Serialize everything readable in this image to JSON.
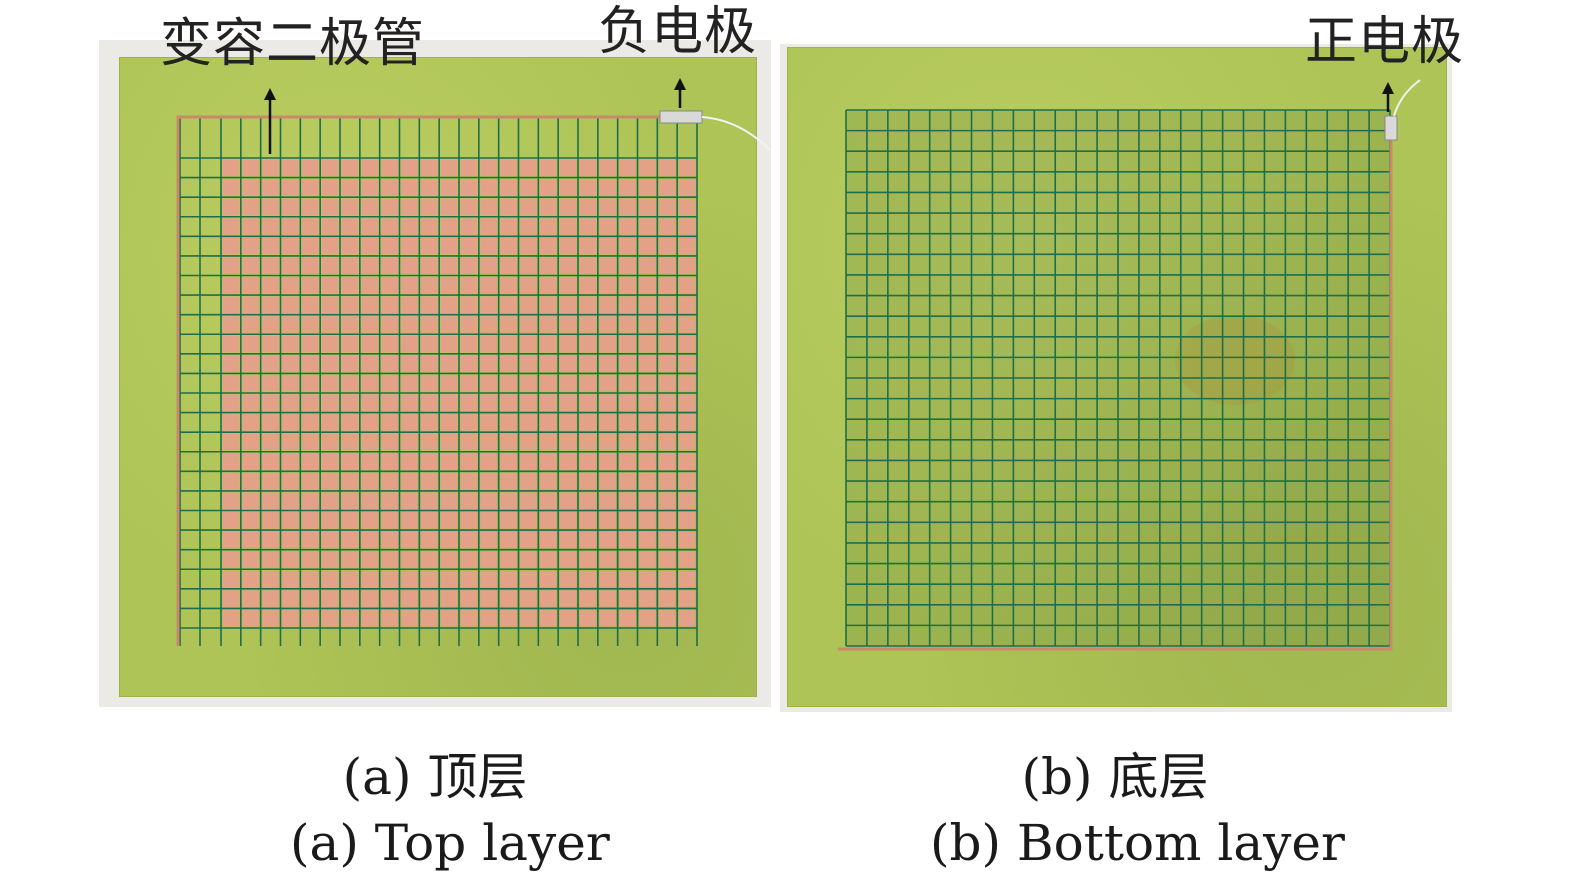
{
  "annotations": {
    "varactor": "变容二极管",
    "negative_electrode": "负电极",
    "positive_electrode": "正电极"
  },
  "captions": {
    "a_cn": "(a) 顶层",
    "a_en": "(a) Top layer",
    "b_cn": "(b) 底层",
    "b_en": "(b) Bottom layer"
  },
  "colors": {
    "substrate": "#aec456",
    "copper_patch": "#e3a287",
    "grid_line": "#1f6e4a",
    "copper_trace": "#c98a6a"
  }
}
